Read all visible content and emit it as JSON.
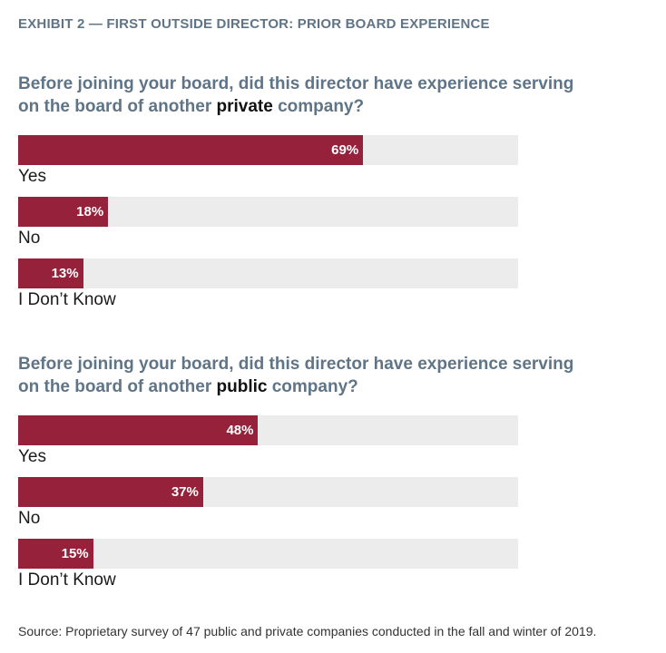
{
  "exhibit_title": "EXHIBIT 2 — FIRST OUTSIDE DIRECTOR: PRIOR BOARD EXPERIENCE",
  "colors": {
    "bar": "#96213a",
    "track": "#ececec",
    "heading": "#5f7587"
  },
  "chart_data": [
    {
      "type": "bar",
      "orientation": "horizontal",
      "title_parts": {
        "before": "Before joining your board, did this director have experience serving on the board of another ",
        "emphasis": "private",
        "after": " company?"
      },
      "categories": [
        "Yes",
        "No",
        "I Don’t Know"
      ],
      "values": [
        69,
        18,
        13
      ],
      "labels": [
        "69%",
        "18%",
        "13%"
      ],
      "unit": "%",
      "xlim": [
        0,
        100
      ],
      "grid": false,
      "legend": "none"
    },
    {
      "type": "bar",
      "orientation": "horizontal",
      "title_parts": {
        "before": "Before joining your board, did this director have experience serving on the board of another ",
        "emphasis": "public",
        "after": " company?"
      },
      "categories": [
        "Yes",
        "No",
        "I Don’t Know"
      ],
      "values": [
        48,
        37,
        15
      ],
      "labels": [
        "48%",
        "37%",
        "15%"
      ],
      "unit": "%",
      "xlim": [
        0,
        100
      ],
      "grid": false,
      "legend": "none"
    }
  ],
  "source": "Source: Proprietary survey of 47 public and private companies conducted in the fall and winter of 2019."
}
